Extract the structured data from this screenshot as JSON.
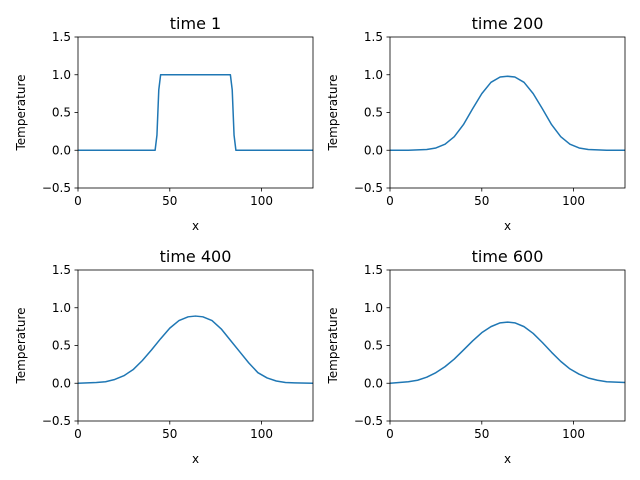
{
  "chart_data": [
    {
      "type": "line",
      "title": "time 1",
      "xlabel": "x",
      "ylabel": "Temperature",
      "xlim": [
        0,
        128
      ],
      "ylim": [
        -0.5,
        1.5
      ],
      "xticks": [
        0,
        50,
        100
      ],
      "yticks": [
        -0.5,
        0.0,
        0.5,
        1.0,
        1.5
      ],
      "ytick_labels": [
        "−0.5",
        "0.0",
        "0.5",
        "1.0",
        "1.5"
      ],
      "grid": false,
      "series": [
        {
          "color": "#1f77b4",
          "x": [
            0,
            42,
            43,
            44,
            45,
            46,
            83,
            84,
            85,
            86,
            128
          ],
          "y": [
            0,
            0,
            0.2,
            0.8,
            1.0,
            1.0,
            1.0,
            0.8,
            0.2,
            0,
            0
          ]
        }
      ]
    },
    {
      "type": "line",
      "title": "time 200",
      "xlabel": "x",
      "ylabel": "Temperature",
      "xlim": [
        0,
        128
      ],
      "ylim": [
        -0.5,
        1.5
      ],
      "xticks": [
        0,
        50,
        100
      ],
      "yticks": [
        -0.5,
        0.0,
        0.5,
        1.0,
        1.5
      ],
      "ytick_labels": [
        "−0.5",
        "0.0",
        "0.5",
        "1.0",
        "1.5"
      ],
      "grid": false,
      "series": [
        {
          "color": "#1f77b4",
          "x": [
            0,
            10,
            20,
            25,
            30,
            35,
            40,
            45,
            50,
            55,
            60,
            64,
            68,
            73,
            78,
            83,
            88,
            93,
            98,
            103,
            108,
            118,
            128
          ],
          "y": [
            0,
            0,
            0.01,
            0.03,
            0.08,
            0.18,
            0.34,
            0.55,
            0.75,
            0.9,
            0.97,
            0.98,
            0.97,
            0.9,
            0.75,
            0.55,
            0.34,
            0.18,
            0.08,
            0.03,
            0.01,
            0,
            0
          ]
        }
      ]
    },
    {
      "type": "line",
      "title": "time 400",
      "xlabel": "x",
      "ylabel": "Temperature",
      "xlim": [
        0,
        128
      ],
      "ylim": [
        -0.5,
        1.5
      ],
      "xticks": [
        0,
        50,
        100
      ],
      "yticks": [
        -0.5,
        0.0,
        0.5,
        1.0,
        1.5
      ],
      "ytick_labels": [
        "−0.5",
        "0.0",
        "0.5",
        "1.0",
        "1.5"
      ],
      "grid": false,
      "series": [
        {
          "color": "#1f77b4",
          "x": [
            0,
            10,
            15,
            20,
            25,
            30,
            35,
            40,
            45,
            50,
            55,
            60,
            64,
            68,
            73,
            78,
            83,
            88,
            93,
            98,
            103,
            108,
            113,
            118,
            128
          ],
          "y": [
            0,
            0.01,
            0.02,
            0.05,
            0.1,
            0.18,
            0.3,
            0.44,
            0.59,
            0.73,
            0.83,
            0.88,
            0.89,
            0.88,
            0.83,
            0.72,
            0.57,
            0.42,
            0.27,
            0.14,
            0.07,
            0.03,
            0.01,
            0.005,
            0
          ]
        }
      ]
    },
    {
      "type": "line",
      "title": "time 600",
      "xlabel": "x",
      "ylabel": "Temperature",
      "xlim": [
        0,
        128
      ],
      "ylim": [
        -0.5,
        1.5
      ],
      "xticks": [
        0,
        50,
        100
      ],
      "yticks": [
        -0.5,
        0.0,
        0.5,
        1.0,
        1.5
      ],
      "ytick_labels": [
        "−0.5",
        "0.0",
        "0.5",
        "1.0",
        "1.5"
      ],
      "grid": false,
      "series": [
        {
          "color": "#1f77b4",
          "x": [
            0,
            10,
            15,
            20,
            25,
            30,
            35,
            40,
            45,
            50,
            55,
            60,
            64,
            68,
            73,
            78,
            83,
            88,
            93,
            98,
            103,
            108,
            113,
            118,
            128
          ],
          "y": [
            0,
            0.02,
            0.04,
            0.08,
            0.14,
            0.22,
            0.32,
            0.44,
            0.56,
            0.67,
            0.75,
            0.8,
            0.81,
            0.8,
            0.75,
            0.66,
            0.54,
            0.41,
            0.29,
            0.19,
            0.12,
            0.07,
            0.04,
            0.02,
            0.01
          ]
        }
      ]
    }
  ]
}
